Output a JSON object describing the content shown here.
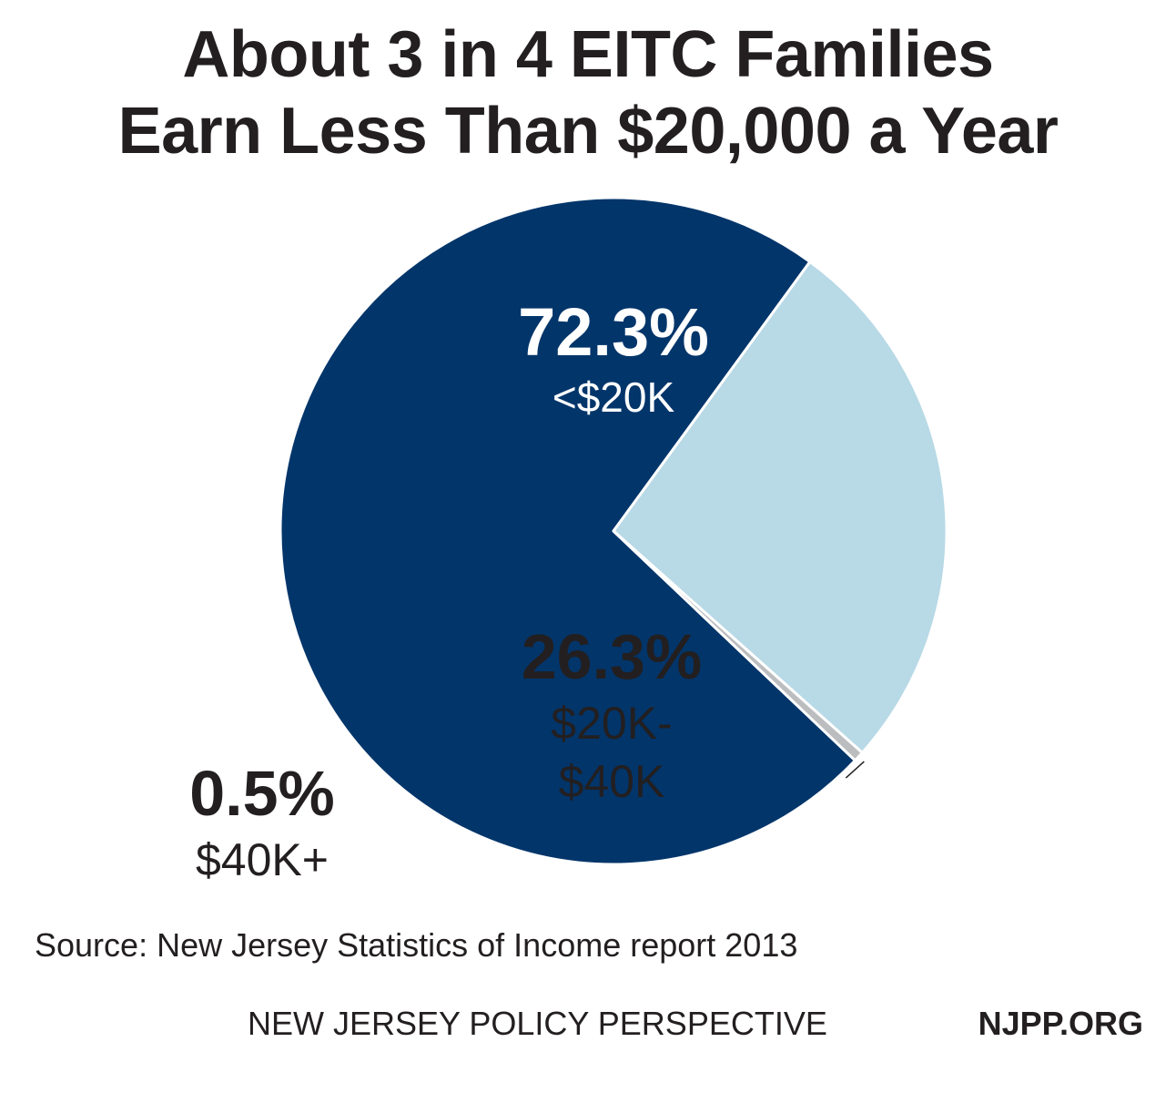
{
  "title_line1": "About 3 in 4 EITC Families",
  "title_line2": "Earn Less Than $20,000 a Year",
  "source": "Source: New Jersey Statistics of Income report 2013",
  "footer": {
    "organization": "NEW JERSEY POLICY PERSPECTIVE",
    "website": "NJPP.ORG"
  },
  "colors": {
    "dark_navy": "#02356a",
    "light_blue": "#b8d9e6",
    "gray": "#bbbdbf",
    "text": "#231f20",
    "white": "#ffffff"
  },
  "chart_data": {
    "type": "pie",
    "title": "About 3 in 4 EITC Families Earn Less Than $20,000 a Year",
    "slices": [
      {
        "label": "<$20K",
        "value": 72.3,
        "value_label": "72.3%",
        "label_lines": [
          "<$20K"
        ],
        "color": "#02356a"
      },
      {
        "label": "$20K-$40K",
        "value": 26.3,
        "value_label": "26.3%",
        "label_lines": [
          "$20K-",
          "$40K"
        ],
        "color": "#b8d9e6"
      },
      {
        "label": "$40K+",
        "value": 0.5,
        "value_label": "0.5%",
        "label_lines": [
          "$40K+"
        ],
        "color": "#bbbdbf"
      }
    ]
  }
}
